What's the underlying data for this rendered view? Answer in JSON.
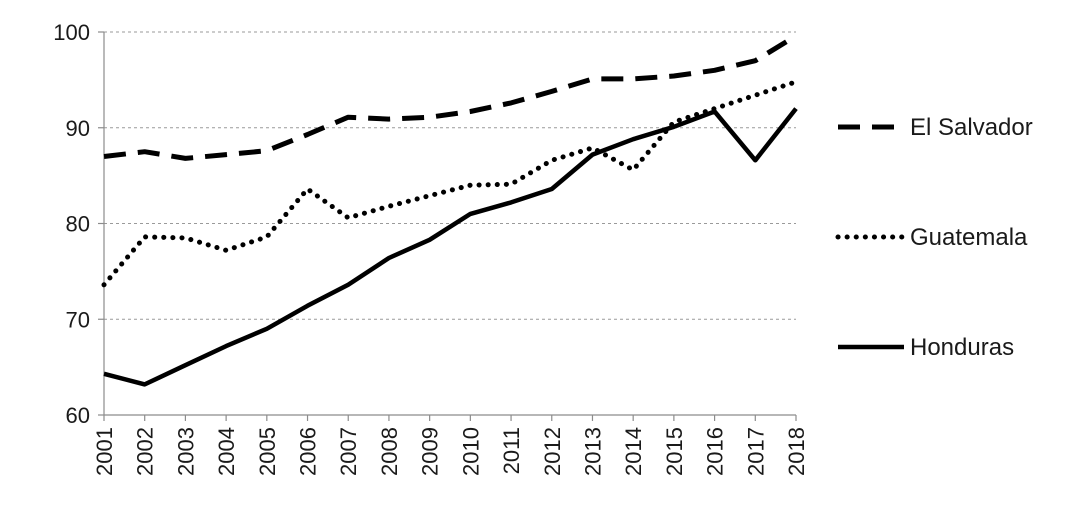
{
  "chart_data": {
    "type": "line",
    "title": "",
    "xlabel": "",
    "ylabel": "",
    "x": [
      "2001",
      "2002",
      "2003",
      "2004",
      "2005",
      "2006",
      "2007",
      "2008",
      "2009",
      "2010",
      "2011",
      "2012",
      "2013",
      "2014",
      "2015",
      "2016",
      "2017",
      "2018"
    ],
    "ylim": [
      60,
      100
    ],
    "yticks": [
      60,
      70,
      80,
      90,
      100
    ],
    "grid": "horizontal dashed",
    "legend_position": "right",
    "series": [
      {
        "name": "El Salvador",
        "style": "dashed",
        "color": "#000000",
        "values": [
          87.0,
          87.5,
          86.8,
          87.2,
          87.6,
          89.3,
          91.1,
          90.9,
          91.1,
          91.7,
          92.6,
          93.8,
          95.1,
          95.1,
          95.4,
          96.0,
          97.0,
          99.6
        ]
      },
      {
        "name": "Guatemala",
        "style": "dotted",
        "color": "#000000",
        "values": [
          73.6,
          78.6,
          78.5,
          77.2,
          78.6,
          83.6,
          80.6,
          81.8,
          82.9,
          84.0,
          84.1,
          86.6,
          87.9,
          85.6,
          90.6,
          92.0,
          93.4,
          94.8
        ]
      },
      {
        "name": "Honduras",
        "style": "solid",
        "color": "#000000",
        "values": [
          64.3,
          63.2,
          65.2,
          67.2,
          69.0,
          71.4,
          73.6,
          76.4,
          78.3,
          81.0,
          82.2,
          83.6,
          87.2,
          88.8,
          90.1,
          91.7,
          86.6,
          92.0
        ]
      }
    ]
  }
}
